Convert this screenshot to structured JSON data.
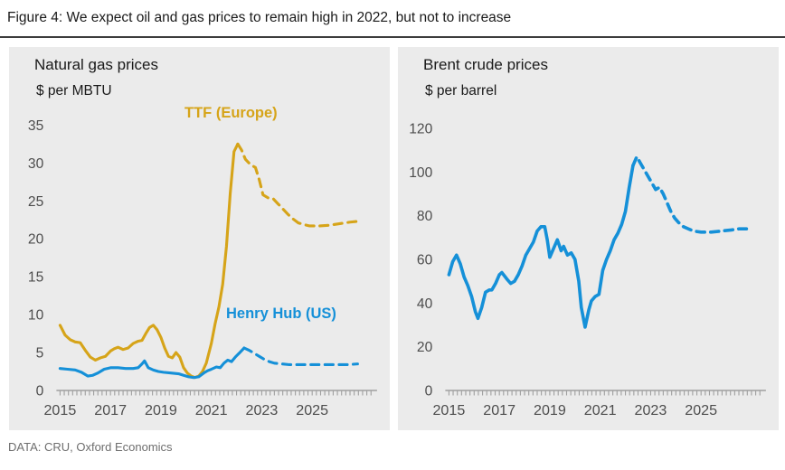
{
  "figure": {
    "title": "Figure 4: We expect oil and gas prices to remain high in 2022, but not to increase",
    "source": "DATA: CRU, Oxford Economics"
  },
  "colors": {
    "gold": "#D6A419",
    "blue": "#1590D8",
    "panel_bg": "#EBEBEB",
    "axis": "#A0A0A0",
    "tick_label": "#4D4D4D",
    "title_text": "#1A1A1A",
    "source_text": "#6E6E6E"
  },
  "chart_data": [
    {
      "type": "line",
      "title": "Natural gas prices",
      "ylabel": "$ per MBTU",
      "ylim": [
        0,
        36
      ],
      "yticks": [
        0,
        5,
        10,
        15,
        20,
        25,
        30,
        35
      ],
      "xlim": [
        2015,
        2027.5
      ],
      "xticks": [
        2015,
        2017,
        2019,
        2021,
        2023,
        2025
      ],
      "grid": false,
      "legend_position": "in-plot labels",
      "series": [
        {
          "id": "ttf",
          "name": "TTF (Europe)",
          "color": "gold",
          "solid": [
            [
              2015.0,
              8.6
            ],
            [
              2015.2,
              7.3
            ],
            [
              2015.4,
              6.7
            ],
            [
              2015.6,
              6.4
            ],
            [
              2015.8,
              6.3
            ],
            [
              2016.0,
              5.3
            ],
            [
              2016.2,
              4.4
            ],
            [
              2016.4,
              4.0
            ],
            [
              2016.6,
              4.3
            ],
            [
              2016.8,
              4.5
            ],
            [
              2017.0,
              5.2
            ],
            [
              2017.15,
              5.5
            ],
            [
              2017.3,
              5.7
            ],
            [
              2017.5,
              5.4
            ],
            [
              2017.7,
              5.6
            ],
            [
              2017.9,
              6.2
            ],
            [
              2018.1,
              6.5
            ],
            [
              2018.25,
              6.6
            ],
            [
              2018.4,
              7.5
            ],
            [
              2018.55,
              8.3
            ],
            [
              2018.7,
              8.6
            ],
            [
              2018.85,
              8.0
            ],
            [
              2019.0,
              7.0
            ],
            [
              2019.15,
              5.6
            ],
            [
              2019.3,
              4.5
            ],
            [
              2019.45,
              4.3
            ],
            [
              2019.6,
              5.0
            ],
            [
              2019.75,
              4.4
            ],
            [
              2019.9,
              3.0
            ],
            [
              2020.05,
              2.3
            ],
            [
              2020.2,
              1.9
            ],
            [
              2020.35,
              1.7
            ],
            [
              2020.5,
              1.9
            ],
            [
              2020.65,
              2.5
            ],
            [
              2020.8,
              3.6
            ],
            [
              2021.0,
              6.2
            ],
            [
              2021.15,
              8.8
            ],
            [
              2021.3,
              11.0
            ],
            [
              2021.45,
              14.0
            ],
            [
              2021.6,
              19.0
            ],
            [
              2021.75,
              26.0
            ],
            [
              2021.9,
              31.5
            ],
            [
              2022.05,
              32.5
            ]
          ],
          "forecast": [
            [
              2022.05,
              32.5
            ],
            [
              2022.2,
              31.7
            ],
            [
              2022.35,
              30.5
            ],
            [
              2022.55,
              29.8
            ],
            [
              2022.75,
              29.4
            ],
            [
              2022.9,
              27.8
            ],
            [
              2023.05,
              25.8
            ],
            [
              2023.25,
              25.4
            ],
            [
              2023.45,
              25.3
            ],
            [
              2023.65,
              24.6
            ],
            [
              2023.85,
              23.9
            ],
            [
              2024.05,
              23.2
            ],
            [
              2024.25,
              22.6
            ],
            [
              2024.45,
              22.1
            ],
            [
              2024.65,
              21.9
            ],
            [
              2024.9,
              21.7
            ],
            [
              2025.3,
              21.7
            ],
            [
              2025.7,
              21.8
            ],
            [
              2026.1,
              22.0
            ],
            [
              2026.5,
              22.2
            ],
            [
              2026.8,
              22.3
            ]
          ]
        },
        {
          "id": "henry_hub",
          "name": "Henry Hub (US)",
          "color": "blue",
          "solid": [
            [
              2015.0,
              2.9
            ],
            [
              2015.3,
              2.8
            ],
            [
              2015.6,
              2.7
            ],
            [
              2015.85,
              2.4
            ],
            [
              2016.1,
              1.9
            ],
            [
              2016.3,
              2.0
            ],
            [
              2016.5,
              2.3
            ],
            [
              2016.75,
              2.8
            ],
            [
              2017.0,
              3.0
            ],
            [
              2017.3,
              3.0
            ],
            [
              2017.6,
              2.9
            ],
            [
              2017.9,
              2.9
            ],
            [
              2018.1,
              3.0
            ],
            [
              2018.25,
              3.5
            ],
            [
              2018.35,
              3.9
            ],
            [
              2018.5,
              3.0
            ],
            [
              2018.7,
              2.7
            ],
            [
              2018.9,
              2.5
            ],
            [
              2019.1,
              2.4
            ],
            [
              2019.4,
              2.3
            ],
            [
              2019.7,
              2.2
            ],
            [
              2019.9,
              2.0
            ],
            [
              2020.1,
              1.8
            ],
            [
              2020.3,
              1.7
            ],
            [
              2020.5,
              1.8
            ],
            [
              2020.7,
              2.3
            ],
            [
              2020.85,
              2.6
            ],
            [
              2021.0,
              2.8
            ],
            [
              2021.2,
              3.1
            ],
            [
              2021.35,
              3.0
            ],
            [
              2021.5,
              3.6
            ],
            [
              2021.65,
              4.0
            ],
            [
              2021.8,
              3.8
            ],
            [
              2021.95,
              4.4
            ],
            [
              2022.1,
              4.9
            ],
            [
              2022.3,
              5.6
            ]
          ],
          "forecast": [
            [
              2022.3,
              5.6
            ],
            [
              2022.5,
              5.3
            ],
            [
              2022.7,
              4.9
            ],
            [
              2022.9,
              4.5
            ],
            [
              2023.1,
              4.1
            ],
            [
              2023.3,
              3.8
            ],
            [
              2023.5,
              3.6
            ],
            [
              2023.8,
              3.5
            ],
            [
              2024.1,
              3.4
            ],
            [
              2024.5,
              3.4
            ],
            [
              2025.0,
              3.4
            ],
            [
              2025.5,
              3.4
            ],
            [
              2026.0,
              3.4
            ],
            [
              2026.4,
              3.4
            ],
            [
              2026.8,
              3.5
            ]
          ]
        }
      ]
    },
    {
      "type": "line",
      "title": "Brent crude prices",
      "ylabel": "$ per barrel",
      "ylim": [
        0,
        125
      ],
      "yticks": [
        0,
        20,
        40,
        60,
        80,
        100,
        120
      ],
      "xlim": [
        2015,
        2027.5
      ],
      "xticks": [
        2015,
        2017,
        2019,
        2021,
        2023,
        2025
      ],
      "grid": false,
      "series": [
        {
          "id": "brent",
          "color": "blue",
          "solid": [
            [
              2015.0,
              53
            ],
            [
              2015.15,
              59
            ],
            [
              2015.3,
              62
            ],
            [
              2015.45,
              58
            ],
            [
              2015.6,
              52
            ],
            [
              2015.75,
              48
            ],
            [
              2015.9,
              43
            ],
            [
              2016.05,
              36
            ],
            [
              2016.15,
              33
            ],
            [
              2016.3,
              38
            ],
            [
              2016.45,
              45
            ],
            [
              2016.6,
              46
            ],
            [
              2016.7,
              46
            ],
            [
              2016.85,
              49
            ],
            [
              2017.0,
              53
            ],
            [
              2017.1,
              54
            ],
            [
              2017.3,
              51
            ],
            [
              2017.45,
              49
            ],
            [
              2017.6,
              50
            ],
            [
              2017.75,
              53
            ],
            [
              2017.9,
              57
            ],
            [
              2018.05,
              62
            ],
            [
              2018.2,
              65
            ],
            [
              2018.35,
              68
            ],
            [
              2018.5,
              73
            ],
            [
              2018.65,
              75
            ],
            [
              2018.8,
              75
            ],
            [
              2018.9,
              69
            ],
            [
              2019.0,
              61
            ],
            [
              2019.15,
              65
            ],
            [
              2019.3,
              69
            ],
            [
              2019.45,
              64
            ],
            [
              2019.55,
              66
            ],
            [
              2019.7,
              62
            ],
            [
              2019.85,
              63
            ],
            [
              2020.0,
              60
            ],
            [
              2020.15,
              50
            ],
            [
              2020.25,
              38
            ],
            [
              2020.4,
              29
            ],
            [
              2020.55,
              37
            ],
            [
              2020.65,
              41
            ],
            [
              2020.8,
              43
            ],
            [
              2020.95,
              44
            ],
            [
              2021.1,
              55
            ],
            [
              2021.25,
              60
            ],
            [
              2021.4,
              64
            ],
            [
              2021.55,
              69
            ],
            [
              2021.7,
              72
            ],
            [
              2021.85,
              76
            ],
            [
              2022.0,
              82
            ],
            [
              2022.15,
              93
            ],
            [
              2022.3,
              103
            ]
          ],
          "forecast": [
            [
              2022.3,
              103
            ],
            [
              2022.45,
              107
            ],
            [
              2022.6,
              104
            ],
            [
              2022.75,
              101
            ],
            [
              2022.9,
              98
            ],
            [
              2023.05,
              95
            ],
            [
              2023.2,
              92
            ],
            [
              2023.35,
              93
            ],
            [
              2023.5,
              90
            ],
            [
              2023.65,
              86
            ],
            [
              2023.8,
              82
            ],
            [
              2023.95,
              79
            ],
            [
              2024.1,
              77
            ],
            [
              2024.3,
              75
            ],
            [
              2024.5,
              74
            ],
            [
              2024.7,
              73
            ],
            [
              2025.0,
              72.5
            ],
            [
              2025.4,
              72.5
            ],
            [
              2025.8,
              73
            ],
            [
              2026.2,
              73.5
            ],
            [
              2026.5,
              74
            ],
            [
              2026.8,
              74
            ]
          ]
        }
      ]
    }
  ]
}
